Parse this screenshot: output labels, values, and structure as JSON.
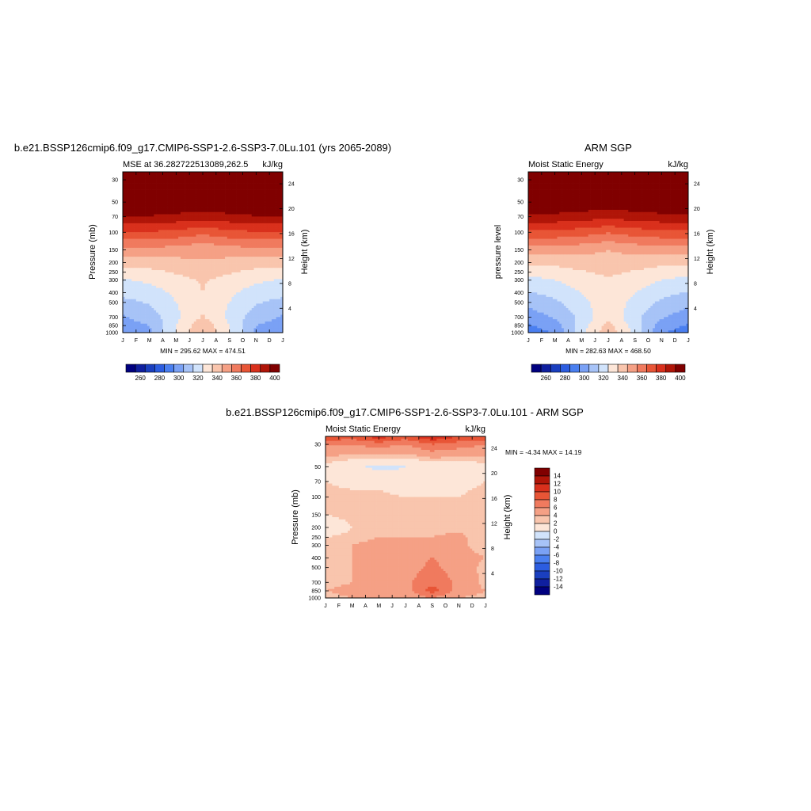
{
  "chart_data": [
    {
      "type": "heatmap",
      "title": "b.e21.BSSP126cmip6.f09_g17.CMIP6-SSP1-2.6-SSP3-7.0Lu.101 (yrs 2065-2089)",
      "left_subtitle": "MSE at 36.282722513089,262.5",
      "right_subtitle": "kJ/kg",
      "ylabel": "Pressure (mb)",
      "y2label": "Height (km)",
      "x_ticks": [
        "J",
        "F",
        "M",
        "A",
        "M",
        "J",
        "J",
        "A",
        "S",
        "O",
        "N",
        "D",
        "J"
      ],
      "y_ticks": [
        30,
        50,
        70,
        100,
        150,
        200,
        250,
        300,
        400,
        500,
        700,
        850,
        1000
      ],
      "y2_ticks": [
        24,
        20,
        16,
        12,
        8,
        4
      ],
      "ylim": [
        1000,
        25
      ],
      "minmax_text": "MIN = 295.62  MAX = 474.51",
      "field": {
        "months": [
          0,
          2,
          4,
          6,
          8,
          10,
          12
        ],
        "levels": [
          25,
          30,
          50,
          70,
          100,
          150,
          200,
          250,
          300,
          400,
          500,
          700,
          850,
          1000
        ],
        "values": [
          [
            430,
            430,
            430,
            430,
            430,
            430,
            430
          ],
          [
            425,
            425,
            425,
            425,
            425,
            425,
            425
          ],
          [
            408,
            408,
            406,
            404,
            406,
            408,
            408
          ],
          [
            394,
            394,
            392,
            390,
            392,
            394,
            394
          ],
          [
            374,
            374,
            372,
            368,
            372,
            374,
            374
          ],
          [
            352,
            352,
            350,
            347,
            350,
            352,
            352
          ],
          [
            340,
            340,
            342,
            344,
            342,
            340,
            340
          ],
          [
            330,
            332,
            336,
            339,
            336,
            332,
            330
          ],
          [
            324,
            327,
            332,
            336,
            332,
            327,
            324
          ],
          [
            318,
            320,
            327,
            335,
            327,
            320,
            318
          ],
          [
            312,
            316,
            325,
            334,
            325,
            316,
            312
          ],
          [
            304,
            310,
            322,
            336,
            322,
            310,
            304
          ],
          [
            300,
            305,
            325,
            342,
            325,
            305,
            300
          ],
          [
            297,
            302,
            326,
            344,
            326,
            302,
            297
          ]
        ]
      }
    },
    {
      "type": "heatmap",
      "title": "ARM SGP",
      "left_subtitle": "Moist Static Energy",
      "right_subtitle": "kJ/kg",
      "ylabel": "pressure level",
      "y2label": "Height (km)",
      "x_ticks": [
        "J",
        "F",
        "M",
        "A",
        "M",
        "J",
        "J",
        "A",
        "S",
        "O",
        "N",
        "D",
        "J"
      ],
      "y_ticks": [
        30,
        50,
        70,
        100,
        150,
        200,
        250,
        300,
        400,
        500,
        700,
        850,
        1000
      ],
      "y2_ticks": [
        24,
        20,
        16,
        12,
        8,
        4
      ],
      "ylim": [
        1000,
        25
      ],
      "minmax_text": "MIN = 282.63  MAX = 468.50",
      "field": {
        "months": [
          0,
          2,
          4,
          6,
          8,
          10,
          12
        ],
        "levels": [
          25,
          30,
          50,
          70,
          100,
          150,
          200,
          250,
          300,
          400,
          500,
          700,
          850,
          1000
        ],
        "values": [
          [
            430,
            430,
            430,
            430,
            430,
            430,
            430
          ],
          [
            425,
            425,
            425,
            425,
            425,
            425,
            425
          ],
          [
            406,
            406,
            404,
            402,
            404,
            406,
            406
          ],
          [
            392,
            392,
            390,
            388,
            390,
            392,
            392
          ],
          [
            372,
            372,
            370,
            366,
            370,
            372,
            372
          ],
          [
            350,
            350,
            348,
            345,
            348,
            350,
            350
          ],
          [
            338,
            338,
            340,
            342,
            340,
            338,
            338
          ],
          [
            328,
            330,
            334,
            337,
            334,
            330,
            328
          ],
          [
            322,
            325,
            330,
            334,
            330,
            325,
            322
          ],
          [
            314,
            318,
            325,
            333,
            325,
            318,
            314
          ],
          [
            308,
            313,
            322,
            332,
            322,
            313,
            308
          ],
          [
            300,
            306,
            318,
            333,
            318,
            306,
            300
          ],
          [
            294,
            300,
            320,
            338,
            320,
            300,
            294
          ],
          [
            290,
            296,
            322,
            342,
            322,
            296,
            290
          ]
        ]
      }
    },
    {
      "type": "heatmap",
      "title": "b.e21.BSSP126cmip6.f09_g17.CMIP6-SSP1-2.6-SSP3-7.0Lu.101 - ARM SGP",
      "left_subtitle": "Moist Static Energy",
      "right_subtitle": "kJ/kg",
      "ylabel": "Pressure (mb)",
      "y2label": "Height (km)",
      "x_ticks": [
        "J",
        "F",
        "M",
        "A",
        "M",
        "J",
        "J",
        "A",
        "S",
        "O",
        "N",
        "D",
        "J"
      ],
      "y_ticks": [
        30,
        50,
        70,
        100,
        150,
        200,
        250,
        300,
        400,
        500,
        700,
        850,
        1000
      ],
      "y2_ticks": [
        24,
        20,
        16,
        12,
        8,
        4
      ],
      "ylim": [
        1000,
        25
      ],
      "minmax_text": "MIN =  -4.34  MAX =  14.19",
      "field": {
        "months": [
          0,
          2,
          4,
          6,
          8,
          10,
          12
        ],
        "levels": [
          25,
          30,
          50,
          70,
          100,
          150,
          200,
          250,
          300,
          400,
          500,
          700,
          850,
          1000
        ],
        "values": [
          [
            8,
            7,
            9,
            7,
            10,
            8,
            8
          ],
          [
            4,
            4,
            5,
            4,
            6,
            5,
            4
          ],
          [
            0.5,
            -0.5,
            -1.5,
            -1,
            -0.5,
            -0.5,
            0.5
          ],
          [
            1,
            0.5,
            0.5,
            -0.5,
            0.5,
            0.5,
            1
          ],
          [
            1.5,
            1.5,
            1.5,
            1,
            1,
            1,
            1.5
          ],
          [
            1,
            1.5,
            1,
            1.5,
            1,
            1.5,
            1
          ],
          [
            -0.5,
            1,
            1.5,
            1.5,
            1.5,
            1.5,
            1
          ],
          [
            1,
            1.5,
            2,
            2,
            2,
            2.5,
            1
          ],
          [
            1,
            2,
            2.5,
            2.5,
            3,
            2.5,
            1
          ],
          [
            1.5,
            2,
            2.5,
            3,
            4,
            3,
            2
          ],
          [
            1,
            2,
            2.5,
            3,
            4.5,
            3,
            1.5
          ],
          [
            1.5,
            2,
            3,
            3.5,
            5.5,
            3.5,
            1.5
          ],
          [
            2,
            2.5,
            3,
            3,
            7,
            3,
            2
          ],
          [
            1.5,
            2,
            2.5,
            2.5,
            4,
            2,
            1.5
          ]
        ]
      }
    }
  ],
  "colorbars": [
    {
      "labels": [
        "260",
        "280",
        "300",
        "320",
        "340",
        "360",
        "380",
        "400"
      ]
    },
    {
      "labels": [
        "260",
        "280",
        "300",
        "320",
        "340",
        "360",
        "380",
        "400"
      ]
    },
    {
      "labels": [
        "14",
        "12",
        "10",
        "8",
        "6",
        "4",
        "2",
        "0",
        "-2",
        "-4",
        "-6",
        "-8",
        "-10",
        "-12",
        "-14"
      ]
    }
  ],
  "palette": [
    "#00007f",
    "#0f1f9f",
    "#1a3fbf",
    "#2c5de0",
    "#4a7ff0",
    "#7aa1f5",
    "#a7c3f7",
    "#d1e3fb",
    "#fde6d8",
    "#f9c5ad",
    "#f5a085",
    "#f07a5e",
    "#e85536",
    "#d9301c",
    "#b01508",
    "#800000"
  ],
  "abs_levels": [
    255,
    265,
    275,
    285,
    295,
    305,
    315,
    325,
    335,
    345,
    355,
    365,
    375,
    385,
    395
  ],
  "diff_levels": [
    -14,
    -12,
    -10,
    -8,
    -6,
    -4,
    -2,
    -1,
    1,
    2,
    4,
    6,
    8,
    10,
    12
  ]
}
